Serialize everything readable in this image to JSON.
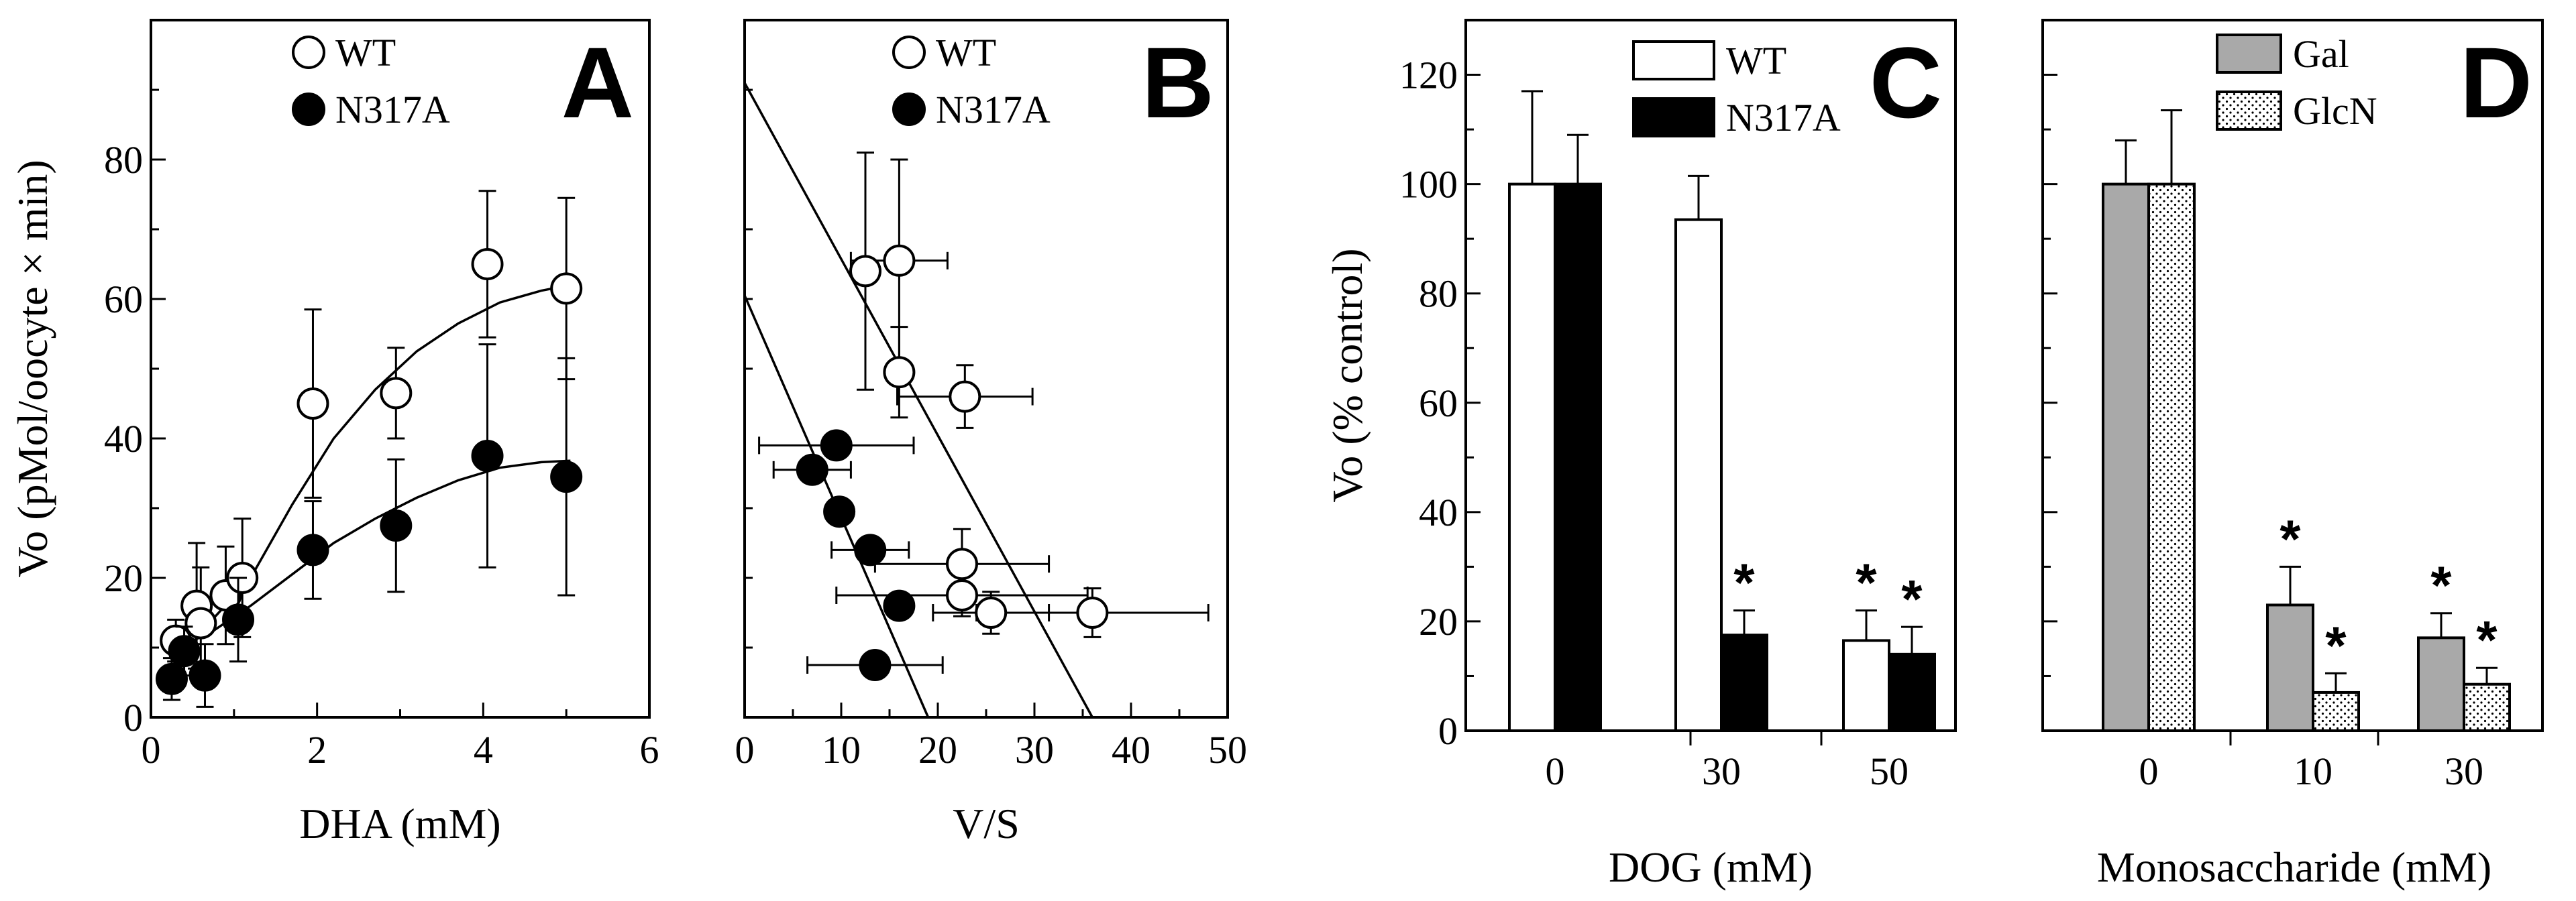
{
  "chart_data": [
    {
      "panel": "A",
      "type": "scatter",
      "xlabel": "DHA (mM)",
      "ylabel": "Vo (pMol/oocyte × min)",
      "xlim": [
        0,
        6
      ],
      "ylim": [
        0,
        100
      ],
      "xticks": [
        0,
        2,
        4,
        6
      ],
      "yticks": [
        0,
        20,
        40,
        60,
        80
      ],
      "legend": {
        "position": "top"
      },
      "series": [
        {
          "name": "WT",
          "marker": "open-circle",
          "points": [
            {
              "x": 0.3,
              "y": 11,
              "err": 3
            },
            {
              "x": 0.55,
              "y": 16,
              "err": 9
            },
            {
              "x": 0.6,
              "y": 13.5,
              "err": 8
            },
            {
              "x": 0.9,
              "y": 17.5,
              "err": 7
            },
            {
              "x": 1.1,
              "y": 20,
              "err": 8.5
            },
            {
              "x": 1.95,
              "y": 45,
              "err": 13.5
            },
            {
              "x": 2.95,
              "y": 46.5,
              "err": 6.5
            },
            {
              "x": 4.05,
              "y": 65,
              "err": 10.5
            },
            {
              "x": 5.0,
              "y": 61.5,
              "err": 13
            }
          ],
          "fit": [
            [
              0.2,
              11
            ],
            [
              0.7,
              13.5
            ],
            [
              1.2,
              20
            ],
            [
              1.7,
              30.5
            ],
            [
              2.2,
              40
            ],
            [
              2.7,
              47
            ],
            [
              3.2,
              52.5
            ],
            [
              3.7,
              56.5
            ],
            [
              4.2,
              59.5
            ],
            [
              4.7,
              61.2
            ],
            [
              5.05,
              62
            ]
          ]
        },
        {
          "name": "N317A",
          "marker": "filled-circle",
          "points": [
            {
              "x": 0.25,
              "y": 5.5,
              "err": 3
            },
            {
              "x": 0.4,
              "y": 9.5,
              "err": 3.5
            },
            {
              "x": 0.65,
              "y": 6,
              "err": 4.5
            },
            {
              "x": 1.05,
              "y": 14,
              "err": 6
            },
            {
              "x": 1.95,
              "y": 24,
              "err": 7
            },
            {
              "x": 2.95,
              "y": 27.5,
              "err": 9.5
            },
            {
              "x": 4.05,
              "y": 37.5,
              "err": 16
            },
            {
              "x": 5.0,
              "y": 34.5,
              "err": 17
            }
          ],
          "fit": [
            [
              0.2,
              9.5
            ],
            [
              0.7,
              12
            ],
            [
              1.2,
              16
            ],
            [
              1.7,
              20.5
            ],
            [
              2.2,
              25
            ],
            [
              2.7,
              28.5
            ],
            [
              3.2,
              31.5
            ],
            [
              3.7,
              34
            ],
            [
              4.2,
              35.8
            ],
            [
              4.7,
              36.6
            ],
            [
              5.05,
              36.8
            ]
          ]
        }
      ]
    },
    {
      "panel": "B",
      "type": "scatter",
      "xlabel": "V/S",
      "ylabel": "",
      "xlim": [
        0,
        50
      ],
      "ylim": [
        0,
        100
      ],
      "xticks": [
        0,
        10,
        20,
        30,
        40,
        50
      ],
      "yticks": [],
      "legend": {
        "position": "top"
      },
      "series": [
        {
          "name": "WT",
          "marker": "open-circle",
          "points": [
            {
              "x": 12.5,
              "y": 64,
              "xerr": 0,
              "yerr": 17
            },
            {
              "x": 16,
              "y": 65.5,
              "xerr": 5,
              "yerr": 14.5
            },
            {
              "x": 16,
              "y": 49.5,
              "xerr": 0,
              "yerr": 6.5
            },
            {
              "x": 22.8,
              "y": 46,
              "xerr": 7,
              "yerr": 4.5
            },
            {
              "x": 22.5,
              "y": 22,
              "xerr": 9,
              "yerr": 5
            },
            {
              "x": 22.5,
              "y": 17.5,
              "xerr": 13,
              "yerr": 3
            },
            {
              "x": 25.5,
              "y": 15,
              "xerr": 6,
              "yerr": 3
            },
            {
              "x": 36,
              "y": 15,
              "xerr": 12,
              "yerr": 3.5
            }
          ],
          "fit": [
            [
              0,
              91
            ],
            [
              36,
              0
            ]
          ]
        },
        {
          "name": "N317A",
          "marker": "filled-circle",
          "points": [
            {
              "x": 9.5,
              "y": 39,
              "xerr": 8,
              "yerr": 0
            },
            {
              "x": 7,
              "y": 35.5,
              "xerr": 4,
              "yerr": 0
            },
            {
              "x": 9.8,
              "y": 29.5,
              "xerr": 0,
              "yerr": 0
            },
            {
              "x": 13,
              "y": 24,
              "xerr": 4,
              "yerr": 0
            },
            {
              "x": 16,
              "y": 16,
              "xerr": 0,
              "yerr": 0
            },
            {
              "x": 13.5,
              "y": 7.5,
              "xerr": 7,
              "yerr": 0
            }
          ],
          "fit": [
            [
              0,
              60.5
            ],
            [
              19,
              0
            ]
          ]
        }
      ]
    },
    {
      "panel": "C",
      "type": "bar",
      "xlabel": "DOG (mM)",
      "ylabel": "Vo (% control)",
      "ylim": [
        0,
        130
      ],
      "yticks": [
        0,
        20,
        40,
        60,
        80,
        100,
        120
      ],
      "categories": [
        "0",
        "30",
        "50"
      ],
      "legend": {
        "position": "top-right"
      },
      "series": [
        {
          "name": "WT",
          "fill": "white",
          "values": [
            100,
            93.5,
            16.5
          ],
          "errors": [
            17,
            8,
            5.5
          ],
          "significant": [
            false,
            false,
            true
          ]
        },
        {
          "name": "N317A",
          "fill": "black",
          "values": [
            100,
            17.5,
            14
          ],
          "errors": [
            9,
            4.5,
            5
          ],
          "significant": [
            false,
            true,
            true
          ]
        }
      ]
    },
    {
      "panel": "D",
      "type": "bar",
      "xlabel": "Monosaccharide (mM)",
      "ylabel": "",
      "ylim": [
        0,
        130
      ],
      "categories": [
        "0",
        "10",
        "30"
      ],
      "legend": {
        "position": "top-right"
      },
      "series": [
        {
          "name": "Gal",
          "fill": "gray",
          "values": [
            100,
            23,
            17
          ],
          "errors": [
            8,
            7,
            4.5
          ],
          "significant": [
            false,
            true,
            true
          ]
        },
        {
          "name": "GlcN",
          "fill": "dotted",
          "values": [
            100,
            7,
            8.5
          ],
          "errors": [
            13.5,
            3.5,
            3
          ],
          "significant": [
            false,
            true,
            true
          ]
        }
      ]
    }
  ],
  "significance_mark": "*",
  "colors": {
    "ink": "#000000",
    "gray_fill": "#a9a9a9",
    "white_fill": "#ffffff",
    "black_fill": "#000000"
  }
}
